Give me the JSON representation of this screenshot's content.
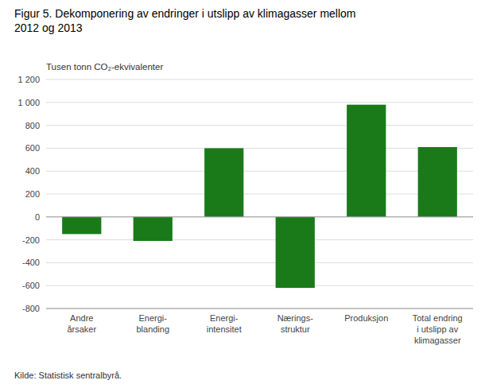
{
  "chart_data": {
    "type": "bar",
    "title": "Figur 5. Dekomponering av endringer i utslipp av klimagasser mellom\n2012 og 2013",
    "y_label": "Tusen tonn CO₂-ekvivalenter",
    "categories": [
      "Andre\nårsaker",
      "Energi-\nblanding",
      "Energi-\nintensitet",
      "Nærings-\nstruktur",
      "Produksjon",
      "Total endring\ni utslipp av\nklimagasser"
    ],
    "values": [
      -150,
      -210,
      600,
      -620,
      980,
      610
    ],
    "color": "#1a7a1a",
    "ylim": [
      -800,
      1200
    ],
    "yticks": [
      -800,
      -600,
      -400,
      -200,
      0,
      200,
      400,
      600,
      800,
      {
        "value": 1000,
        "label": "1 000"
      },
      {
        "value": 1200,
        "label": "1 200"
      }
    ],
    "grid": true,
    "source": "Kilde: Statistisk sentralbyrå."
  }
}
